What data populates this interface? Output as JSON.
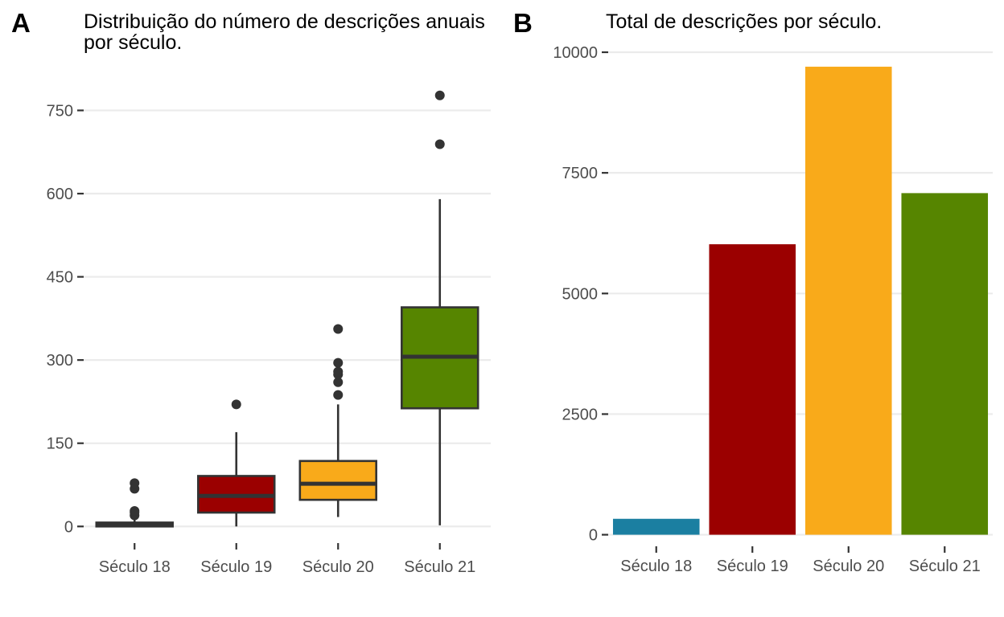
{
  "chart_data": [
    {
      "panel": "A",
      "type": "boxplot",
      "title_lines": [
        "Distribuição do número de descrições anuais",
        "por século."
      ],
      "categories": [
        "Século 18",
        "Século 19",
        "Século 20",
        "Século 21"
      ],
      "yticks": [
        0,
        150,
        300,
        450,
        600,
        750
      ],
      "ylim": [
        -30,
        810
      ],
      "boxes": [
        {
          "category": "Século 18",
          "color": "#1B7FA1",
          "whisker_low": 0,
          "q1": 0,
          "median": 3,
          "q3": 7,
          "whisker_high": 12,
          "outliers": [
            20,
            25,
            28,
            68,
            78
          ]
        },
        {
          "category": "Século 19",
          "color": "#9B0000",
          "whisker_low": 0,
          "q1": 25,
          "median": 55,
          "q3": 91,
          "whisker_high": 170,
          "outliers": [
            220
          ]
        },
        {
          "category": "Século 20",
          "color": "#F9AA1A",
          "whisker_low": 17,
          "q1": 48,
          "median": 77,
          "q3": 118,
          "whisker_high": 220,
          "outliers": [
            237,
            260,
            274,
            279,
            295,
            356
          ]
        },
        {
          "category": "Século 21",
          "color": "#568500",
          "whisker_low": 2,
          "q1": 213,
          "median": 306,
          "q3": 395,
          "whisker_high": 590,
          "outliers": [
            689,
            777
          ]
        }
      ]
    },
    {
      "panel": "B",
      "type": "bar",
      "title": "Total de descrições por século.",
      "categories": [
        "Século 18",
        "Século 19",
        "Século 20",
        "Século 21"
      ],
      "values": [
        330,
        6020,
        9700,
        7080
      ],
      "colors": [
        "#1B7FA1",
        "#9B0000",
        "#F9AA1A",
        "#568500"
      ],
      "yticks": [
        0,
        2500,
        5000,
        7500,
        10000
      ],
      "ylim": [
        -240,
        10250
      ]
    }
  ]
}
